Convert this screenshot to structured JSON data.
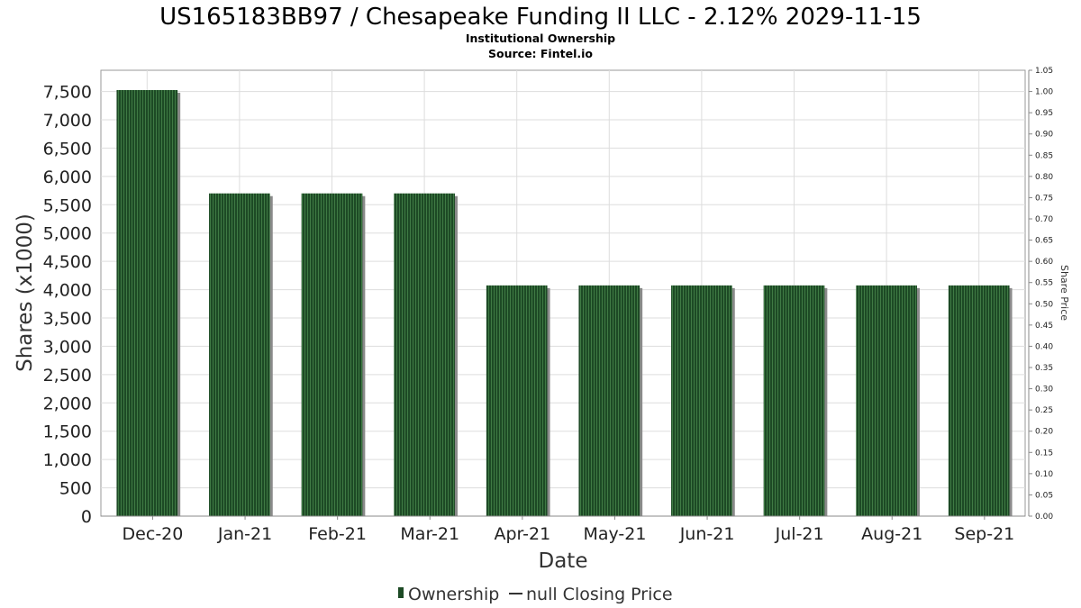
{
  "chart_data": {
    "type": "bar",
    "title": "US165183BB97 / Chesapeake Funding II LLC - 2.12% 2029-11-15",
    "subtitle": "Institutional Ownership",
    "source": "Source: Fintel.io",
    "xlabel": "Date",
    "ylabel": "Shares (x1000)",
    "ylabel_right": "Share Price",
    "categories": [
      "Dec-20",
      "Jan-21",
      "Feb-21",
      "Mar-21",
      "Apr-21",
      "May-21",
      "Jun-21",
      "Jul-21",
      "Aug-21",
      "Sep-21"
    ],
    "series": [
      {
        "name": "Ownership",
        "values": [
          7525,
          5700,
          5700,
          5700,
          4075,
          4075,
          4075,
          4075,
          4075,
          4075
        ]
      }
    ],
    "ylim": [
      0,
      7875
    ],
    "yticks": [
      0,
      500,
      1000,
      1500,
      2000,
      2500,
      3000,
      3500,
      4000,
      4500,
      5000,
      5500,
      6000,
      6500,
      7000,
      7500
    ],
    "yticks_labels": [
      "0",
      "500",
      "1,000",
      "1,500",
      "2,000",
      "2,500",
      "3,000",
      "3,500",
      "4,000",
      "4,500",
      "5,000",
      "5,500",
      "6,000",
      "6,500",
      "7,000",
      "7,500"
    ],
    "ylim_right": [
      0,
      1.05
    ],
    "yticks_right_labels": [
      "0.00",
      "0.05",
      "0.10",
      "0.15",
      "0.20",
      "0.25",
      "0.30",
      "0.35",
      "0.40",
      "0.45",
      "0.50",
      "0.55",
      "0.60",
      "0.65",
      "0.70",
      "0.75",
      "0.80",
      "0.85",
      "0.90",
      "0.95",
      "1.00",
      "1.05"
    ],
    "grid": true,
    "legend": {
      "placement": "bottom-center",
      "items": [
        {
          "label": "Ownership",
          "kind": "bar"
        },
        {
          "label": "null Closing Price",
          "kind": "line"
        }
      ]
    },
    "colors": {
      "bar": "#1d4a25",
      "bar_stripe": "#3f7a44",
      "bar_shadow": "#8a8a8a",
      "grid": "#dddddd",
      "axis": "#888888"
    }
  }
}
